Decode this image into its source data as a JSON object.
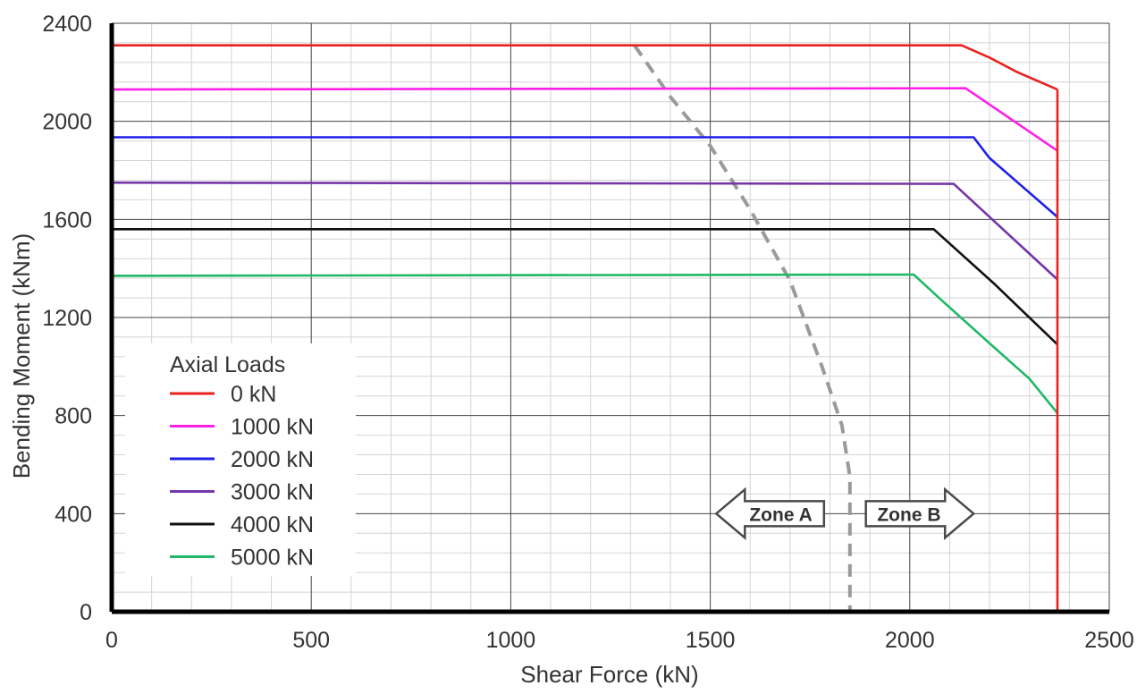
{
  "chart_data": {
    "type": "line",
    "xlabel": "Shear Force (kN)",
    "ylabel": "Bending Moment (kNm)",
    "xlim": [
      0,
      2500
    ],
    "ylim": [
      0,
      2400
    ],
    "x_ticks": [
      "0",
      "500",
      "1000",
      "1500",
      "2000",
      "2500"
    ],
    "y_ticks": [
      "0",
      "400",
      "800",
      "1200",
      "1600",
      "2000",
      "2400"
    ],
    "grid": true,
    "legend": {
      "title": "Axial Loads",
      "placement": "lower-left"
    },
    "series": [
      {
        "name": "0 kN",
        "color": "#e8231f",
        "points": [
          [
            0,
            2310
          ],
          [
            2130,
            2310
          ],
          [
            2200,
            2260
          ],
          [
            2270,
            2200
          ],
          [
            2370,
            2130
          ]
        ]
      },
      {
        "name": "1000 kN",
        "color": "#ff1fe8",
        "points": [
          [
            0,
            2130
          ],
          [
            2140,
            2135
          ],
          [
            2370,
            1880
          ]
        ]
      },
      {
        "name": "2000 kN",
        "color": "#1f1fe8",
        "points": [
          [
            0,
            1935
          ],
          [
            2160,
            1935
          ],
          [
            2200,
            1850
          ],
          [
            2370,
            1610
          ]
        ]
      },
      {
        "name": "3000 kN",
        "color": "#7535a8",
        "points": [
          [
            0,
            1750
          ],
          [
            2110,
            1745
          ],
          [
            2370,
            1355
          ]
        ]
      },
      {
        "name": "4000 kN",
        "color": "#111111",
        "points": [
          [
            0,
            1560
          ],
          [
            2060,
            1560
          ],
          [
            2210,
            1340
          ],
          [
            2370,
            1090
          ]
        ]
      },
      {
        "name": "5000 kN",
        "color": "#1fb866",
        "points": [
          [
            0,
            1370
          ],
          [
            2010,
            1375
          ],
          [
            2080,
            1270
          ],
          [
            2210,
            1080
          ],
          [
            2300,
            950
          ],
          [
            2370,
            810
          ]
        ]
      }
    ],
    "boundary": {
      "color": "#9a9a9a",
      "points": [
        [
          1310,
          2310
        ],
        [
          1400,
          2100
        ],
        [
          1500,
          1900
        ],
        [
          1600,
          1640
        ],
        [
          1700,
          1350
        ],
        [
          1780,
          1000
        ],
        [
          1830,
          760
        ],
        [
          1850,
          550
        ],
        [
          1850,
          0
        ]
      ]
    },
    "limit_line": {
      "color": "#e8231f",
      "x": 2370,
      "y_top": 2130
    },
    "annotations": [
      {
        "text": "Zone A",
        "direction": "left",
        "x_start": 1515,
        "x_end": 1785,
        "y": 400
      },
      {
        "text": "Zone B",
        "direction": "right",
        "x_start": 1890,
        "x_end": 2160,
        "y": 400
      }
    ]
  }
}
